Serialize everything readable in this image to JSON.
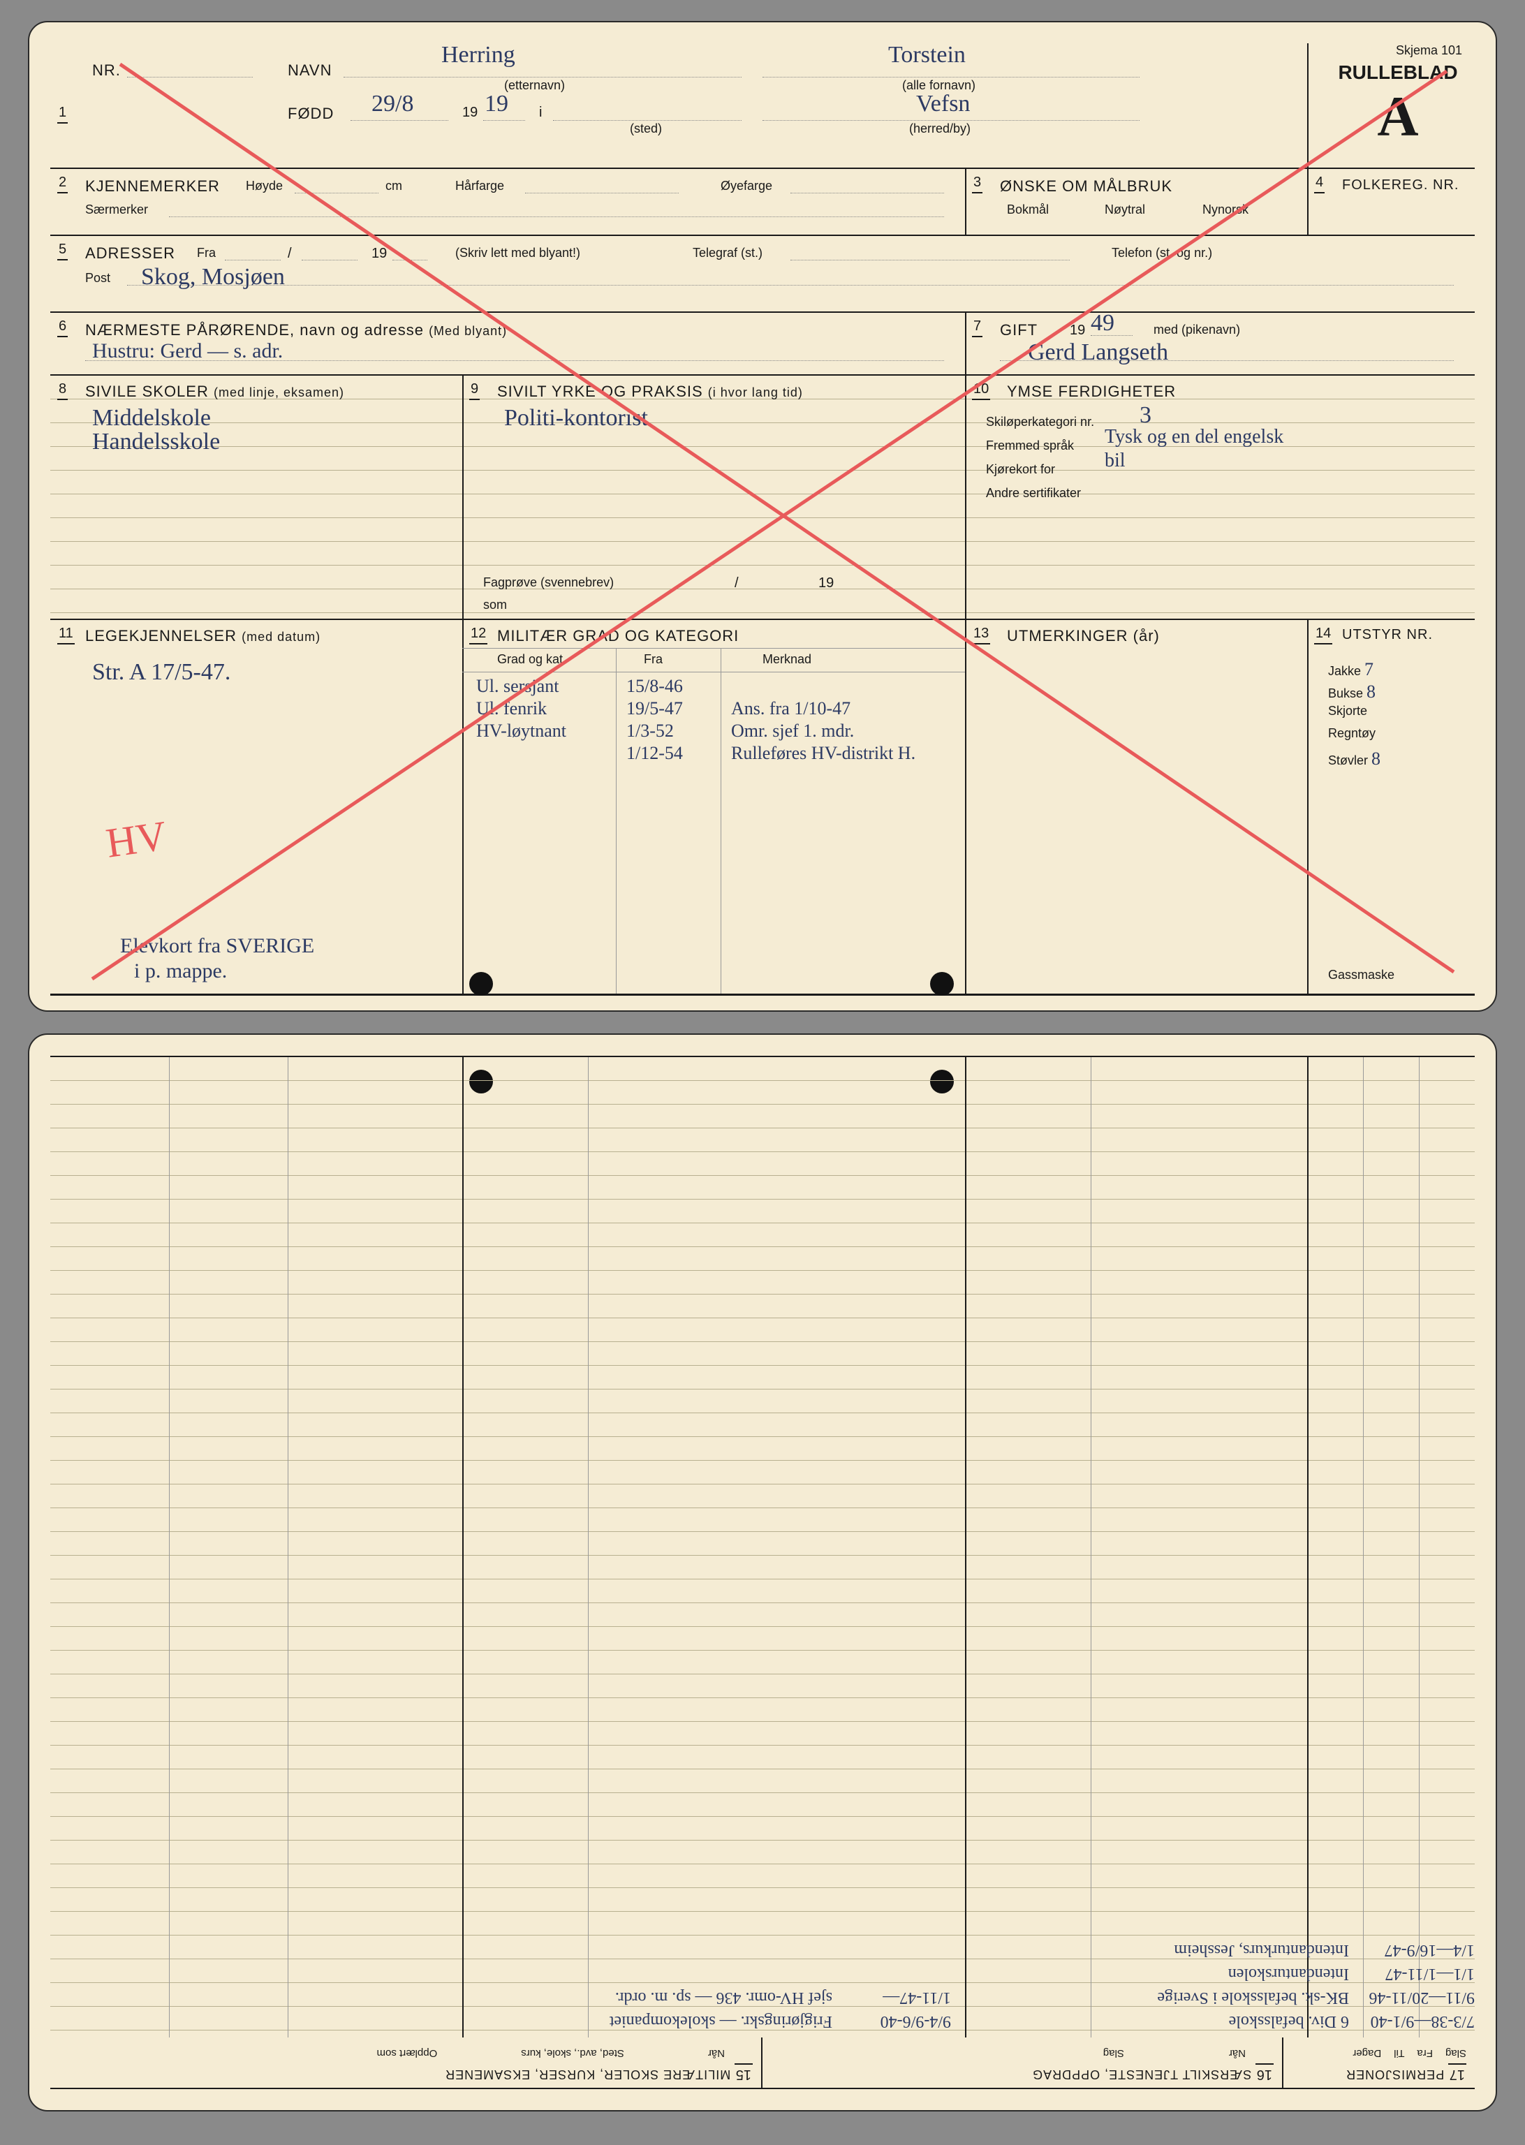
{
  "meta": {
    "schema_no": "Skjema 101"
  },
  "header": {
    "nr_label": "NR.",
    "navn_label": "NAVN",
    "etternavn_hint": "(etternavn)",
    "fornavn_hint": "(alle fornavn)",
    "fodd_label": "FØDD",
    "sted_hint": "(sted)",
    "herred_hint": "(herred/by)",
    "rulleblad": "RULLEBLAD",
    "letter": "A",
    "etternavn_val": "Herring",
    "fornavn_val": "Torstein",
    "fodd_day": "29/8",
    "fodd_year_prefix": "19",
    "fodd_year": "19",
    "i": "i",
    "herred_val": "Vefsn"
  },
  "box2": {
    "title": "KJENNEMERKER",
    "hoyde": "Høyde",
    "cm": "cm",
    "harfarge": "Hårfarge",
    "oyefarge": "Øyefarge",
    "saermerker": "Særmerker"
  },
  "box3": {
    "title": "ØNSKE OM MÅLBRUK",
    "bokmal": "Bokmål",
    "noytral": "Nøytral",
    "nynorsk": "Nynorsk"
  },
  "box4": {
    "title": "FOLKEREG. NR."
  },
  "box5": {
    "title": "ADRESSER",
    "fra": "Fra",
    "slash": "/",
    "nineteen": "19",
    "skriv": "(Skriv lett med blyant!)",
    "telegraf": "Telegraf (st.)",
    "telefon": "Telefon (st. og nr.)",
    "post": "Post",
    "address_val": "Skog, Mosjøen"
  },
  "box6": {
    "title": "NÆRMESTE PÅRØRENDE, navn og adresse",
    "hint": "(Med blyant)",
    "value": "Hustru: Gerd — s. adr."
  },
  "box7": {
    "title": "GIFT",
    "year_prefix": "19",
    "year": "49",
    "med": "med (pikenavn)",
    "value": "Gerd Langseth"
  },
  "box8": {
    "title": "SIVILE SKOLER",
    "hint": "(med linje, eksamen)",
    "line1": "Middelskole",
    "line2": "Handelsskole"
  },
  "box9": {
    "title": "SIVILT YRKE OG PRAKSIS",
    "hint": "(i hvor lang tid)",
    "value": "Politi-kontorist",
    "fagprove": "Fagprøve (svennebrev)",
    "som": "som",
    "slash": "/",
    "nineteen": "19"
  },
  "box10": {
    "title": "YMSE FERDIGHETER",
    "ski": "Skiløperkategori nr.",
    "ski_val": "3",
    "sprak": "Fremmed språk",
    "sprak_val": "Tysk og en del engelsk",
    "kjorekort": "Kjørekort for",
    "kjorekort_val": "bil",
    "sertifikater": "Andre sertifikater"
  },
  "box11": {
    "title": "LEGEKJENNELSER",
    "hint": "(med datum)",
    "value": "Str. A 17/5-47.",
    "note1": "HV",
    "note2": "Elevkort fra SVERIGE",
    "note3": "i p. mappe."
  },
  "box12": {
    "title": "MILITÆR GRAD OG KATEGORI",
    "col1": "Grad og kat.",
    "col2": "Fra",
    "col3": "Merknad",
    "rows": [
      {
        "grad": "Ul. sersjant",
        "fra": "15/8-46",
        "merk": ""
      },
      {
        "grad": "Ul. fenrik",
        "fra": "19/5-47",
        "merk": "Ans. fra 1/10-47"
      },
      {
        "grad": "HV-løytnant",
        "fra": "1/3-52",
        "merk": "Omr. sjef 1. mdr."
      },
      {
        "grad": "",
        "fra": "1/12-54",
        "merk": "Rulleføres HV-distrikt H."
      }
    ]
  },
  "box13": {
    "title": "UTMERKINGER (år)"
  },
  "box14": {
    "title": "UTSTYR NR.",
    "jakke": "Jakke",
    "jakke_v": "7",
    "bukse": "Bukse",
    "bukse_v": "8",
    "skjorte": "Skjorte",
    "regntoy": "Regntøy",
    "stovler": "Støvler",
    "stovler_v": "8",
    "gassmaske": "Gassmaske"
  },
  "bottom": {
    "b15": {
      "title": "MILITÆRE SKOLER, KURSER, EKSAMENER",
      "col1": "Når",
      "col2": "Sted, avd., skole, kurs",
      "col3": "Opplært som",
      "rows": [
        {
          "c1": "7/3-38—9/1-40",
          "c2": "6 Div. befalsskole",
          "c3": ""
        },
        {
          "c1": "9/11—20/11-46",
          "c2": "BK-sk. befalsskole i Sverige",
          "c3": ""
        },
        {
          "c1": "1/1—1/11-47",
          "c2": "Intendanturskolen",
          "c3": ""
        },
        {
          "c1": "1/4—16/9-47",
          "c2": "Intendanturkurs, Jessheim",
          "c3": ""
        }
      ]
    },
    "b16": {
      "title": "SÆRSKILT TJENESTE, OPPDRAG",
      "col1": "Når",
      "col2": "Slag",
      "rows": [
        {
          "c1": "9/4-9/6-40",
          "c2": "Frigjøringskr. — skolekompaniet"
        },
        {
          "c1": "1/11-47—",
          "c2": "sjef HV-omr. 436 — sp. m. ordr."
        }
      ]
    },
    "b17": {
      "title": "PERMISJONER",
      "col1": "Slag",
      "col2": "Fra",
      "col3": "Til",
      "col4": "Dager"
    }
  },
  "colors": {
    "paper": "#f5ecd4",
    "ink": "#1a1a1a",
    "hand": "#2c3a63",
    "red": "#e85a5a",
    "rule": "#b8b090"
  }
}
